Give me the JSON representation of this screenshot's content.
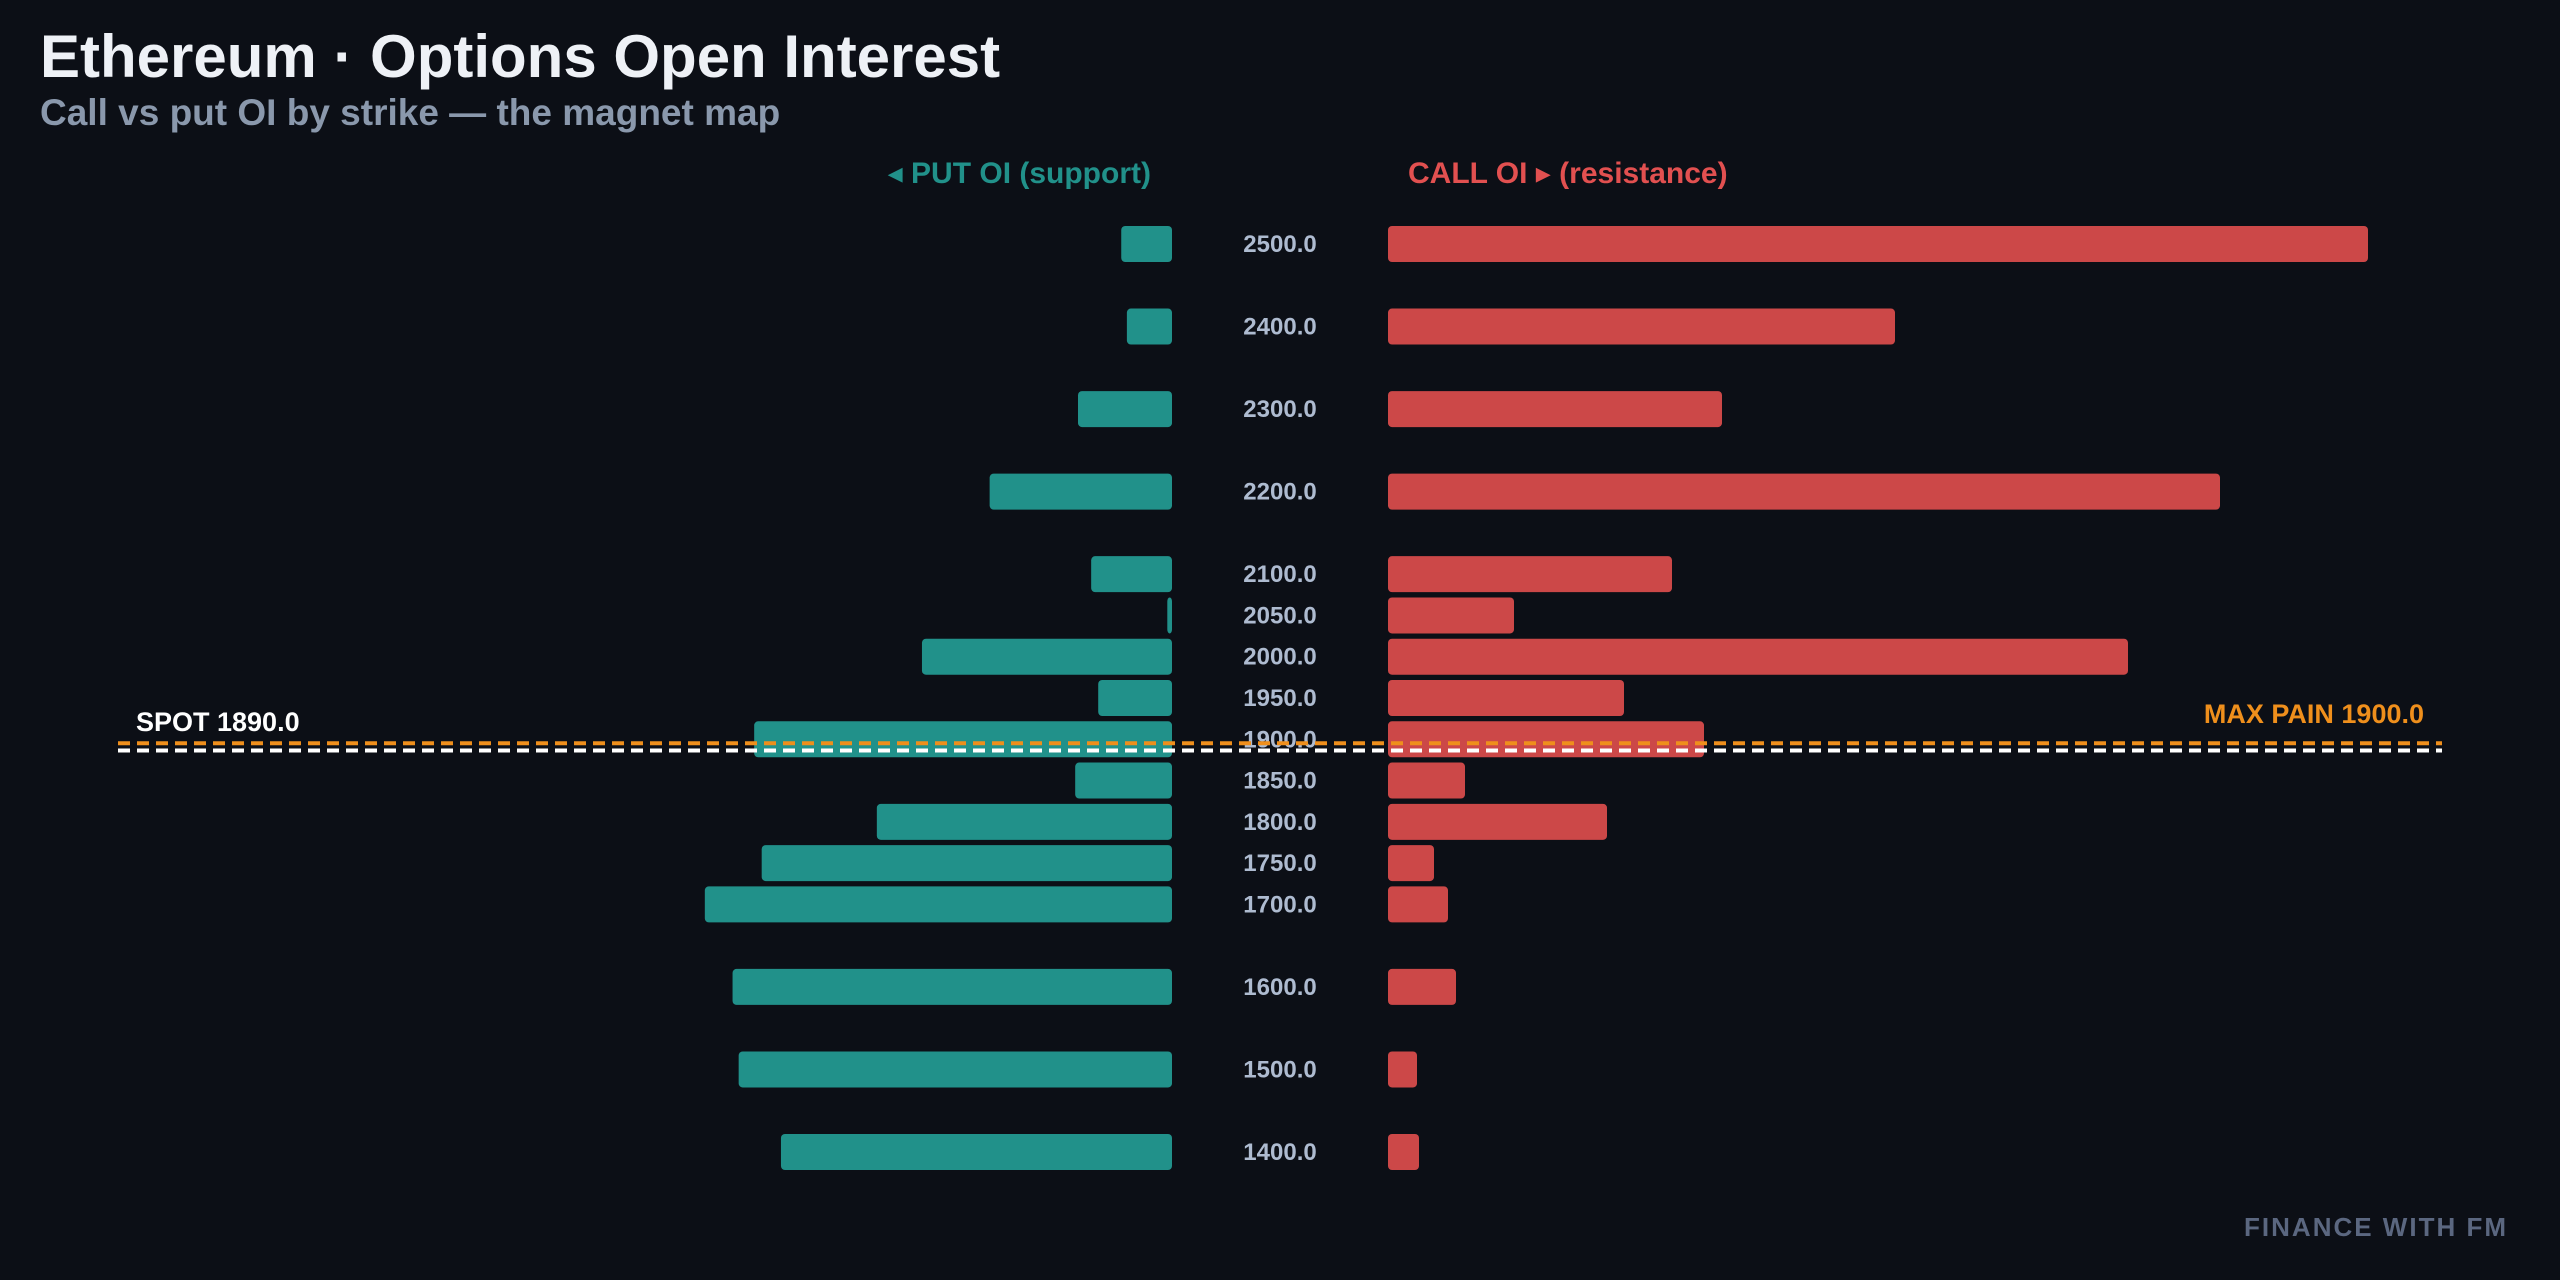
{
  "header": {
    "title": "Ethereum · Options Open Interest",
    "subtitle": "Call vs put OI by strike — the magnet map"
  },
  "watermark": "FINANCE WITH FM",
  "colors": {
    "background": "#0c0f16",
    "put": "#21918a",
    "call": "#cc4848",
    "spot": "#ffffff",
    "max_pain": "#ef8f1c",
    "strike_text": "#aebbd0"
  },
  "chart_data": {
    "type": "bar",
    "orientation": "horizontal-butterfly",
    "title": "Ethereum · Options Open Interest",
    "subtitle": "Call vs put OI by strike — the magnet map",
    "put_header": "◂ PUT OI (support)",
    "call_header": "CALL OI ▸ (resistance)",
    "strikes": [
      2500,
      2400,
      2300,
      2200,
      2100,
      2050,
      2000,
      1950,
      1900,
      1850,
      1800,
      1750,
      1700,
      1600,
      1500,
      1400
    ],
    "strike_labels": [
      "2500.0",
      "2400.0",
      "2300.0",
      "2200.0",
      "2100.0",
      "2050.0",
      "2000.0",
      "1950.0",
      "1900.0",
      "1850.0",
      "1800.0",
      "1750.0",
      "1700.0",
      "1600.0",
      "1500.0",
      "1400.0"
    ],
    "series": [
      {
        "name": "PUT OI (support)",
        "values": [
          0.108,
          0.096,
          0.2,
          0.388,
          0.172,
          0.01,
          0.532,
          0.157,
          0.889,
          0.206,
          0.628,
          0.873,
          0.994,
          0.935,
          0.922,
          0.832
        ]
      },
      {
        "name": "CALL OI (resistance)",
        "values": [
          0.98,
          0.507,
          0.334,
          0.832,
          0.284,
          0.126,
          0.74,
          0.236,
          0.316,
          0.077,
          0.219,
          0.046,
          0.06,
          0.068,
          0.029,
          0.031
        ]
      }
    ],
    "spot": {
      "value": 1890.0,
      "label": "SPOT 1890.0"
    },
    "max_pain": {
      "value": 1900.0,
      "label": "MAX PAIN 1900.0"
    },
    "xlabel": "",
    "ylabel": "",
    "grid": false,
    "legend": "top-center"
  }
}
